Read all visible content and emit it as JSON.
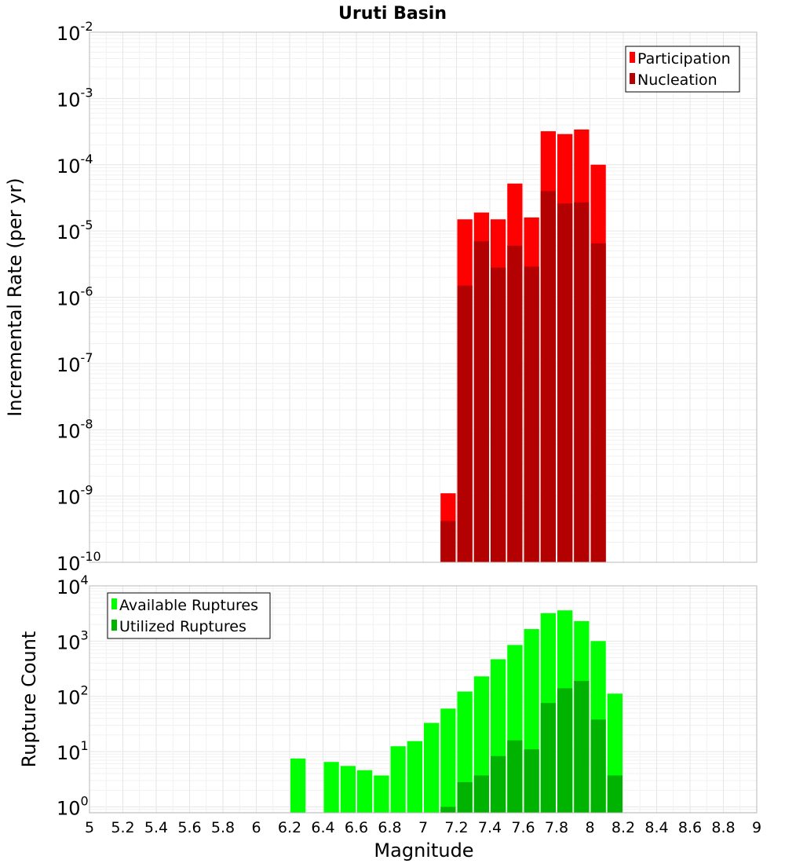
{
  "chart_data": {
    "type": "bar",
    "title": "Uruti Basin",
    "xlabel": "Magnitude",
    "xlim": [
      5,
      9
    ],
    "xticks": [
      "5",
      "5.2",
      "5.4",
      "5.6",
      "5.8",
      "6",
      "6.2",
      "6.4",
      "6.6",
      "6.8",
      "7",
      "7.2",
      "7.4",
      "7.6",
      "7.8",
      "8",
      "8.2",
      "8.4",
      "8.6",
      "8.8",
      "9"
    ],
    "bin_width": 0.1,
    "grid": true,
    "panels": [
      {
        "id": "rate",
        "ylabel": "Incremental Rate (per yr)",
        "yscale": "log",
        "ylim": [
          1e-10,
          0.01
        ],
        "yticks": [
          {
            "base": "10",
            "exp": "-10"
          },
          {
            "base": "10",
            "exp": "-9"
          },
          {
            "base": "10",
            "exp": "-8"
          },
          {
            "base": "10",
            "exp": "-7"
          },
          {
            "base": "10",
            "exp": "-6"
          },
          {
            "base": "10",
            "exp": "-5"
          },
          {
            "base": "10",
            "exp": "-4"
          },
          {
            "base": "10",
            "exp": "-3"
          },
          {
            "base": "10",
            "exp": "-2"
          }
        ],
        "legend_position": "top-right",
        "x": [
          7.15,
          7.25,
          7.35,
          7.45,
          7.55,
          7.65,
          7.75,
          7.85,
          7.95,
          8.05
        ],
        "series": [
          {
            "name": "Participation",
            "color": "#ff0000",
            "values": [
              1.1e-09,
              1.5e-05,
              1.9e-05,
              1.5e-05,
              5.2e-05,
              1.6e-05,
              0.00032,
              0.00029,
              0.00034,
              0.0001
            ]
          },
          {
            "name": "Nucleation",
            "color": "#b30000",
            "values": [
              4.2e-10,
              1.5e-06,
              7e-06,
              2.8e-06,
              6e-06,
              2.9e-06,
              4e-05,
              2.6e-05,
              2.7e-05,
              6.5e-06
            ]
          }
        ]
      },
      {
        "id": "count",
        "ylabel": "Rupture Count",
        "yscale": "log",
        "ylim": [
          0.78,
          10000
        ],
        "yticks": [
          {
            "value": 1,
            "base": "10",
            "exp": "0"
          },
          {
            "value": 10,
            "base": "10",
            "exp": "1"
          },
          {
            "value": 100,
            "base": "10",
            "exp": "2"
          },
          {
            "value": 1000,
            "base": "10",
            "exp": "3"
          },
          {
            "value": 10000,
            "base": "10",
            "exp": "4"
          }
        ],
        "legend_position": "top-left",
        "x": [
          6.25,
          6.45,
          6.55,
          6.65,
          6.75,
          6.85,
          6.95,
          7.05,
          7.15,
          7.25,
          7.35,
          7.45,
          7.55,
          7.65,
          7.75,
          7.85,
          7.95,
          8.05,
          8.15
        ],
        "series": [
          {
            "name": "Available Ruptures",
            "color": "#00ff00",
            "values": [
              7.5,
              6.5,
              5.5,
              4.6,
              3.7,
              12.5,
              15.5,
              33,
              60,
              122,
              230,
              470,
              850,
              1650,
              3200,
              3600,
              2300,
              1000,
              112
            ]
          },
          {
            "name": "Utilized Ruptures",
            "color": "#00b300",
            "values": [
              null,
              null,
              null,
              null,
              null,
              null,
              null,
              null,
              1,
              2.8,
              3.7,
              8.3,
              16,
              11,
              76,
              140,
              190,
              38,
              3.7
            ]
          }
        ]
      }
    ]
  }
}
